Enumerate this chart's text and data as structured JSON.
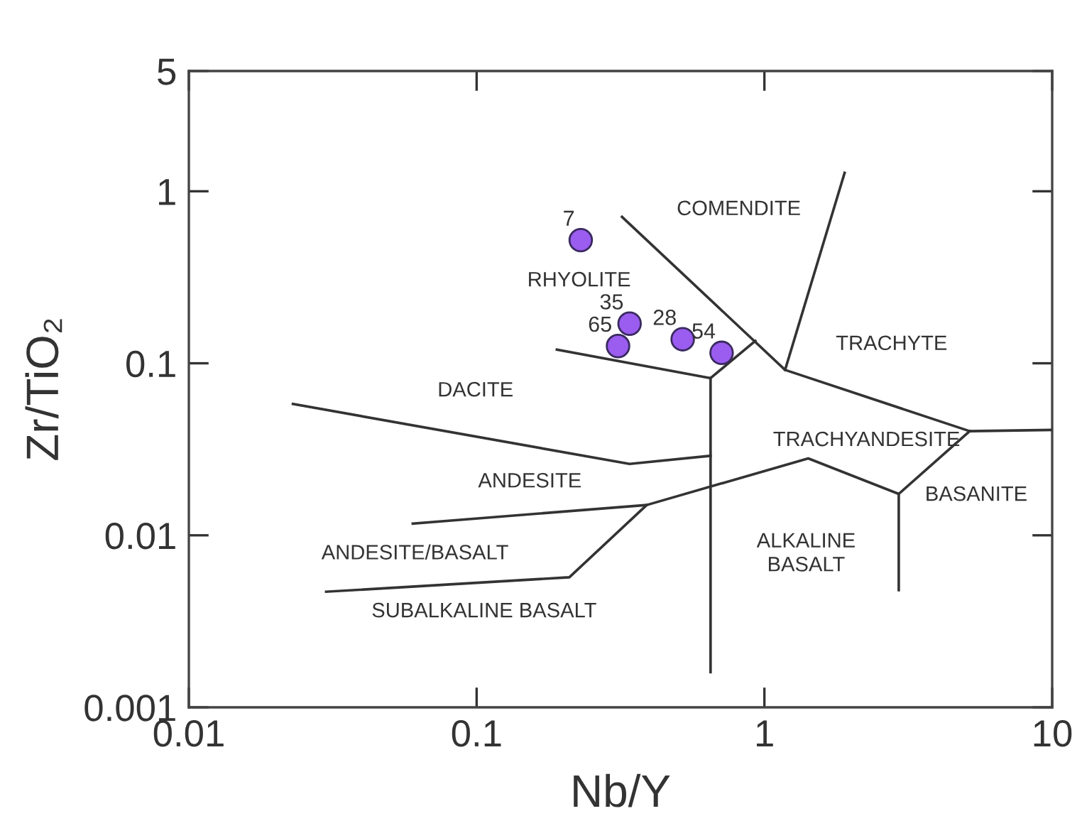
{
  "chart_data": {
    "type": "scatter",
    "xlabel": "Nb/Y",
    "ylabel": "Zr/TiO₂",
    "log": "xy",
    "grid": false,
    "legend": false,
    "xlim": [
      0.01,
      10
    ],
    "xticks": [
      0.01,
      0.1,
      1,
      10
    ],
    "ylim": [
      0.001,
      5
    ],
    "yticks": [
      0.001,
      0.01,
      0.1,
      1,
      5
    ],
    "series": [
      {
        "type": "scatter",
        "color": "#9b5cf0",
        "marker": "circle",
        "x": [
          0.23,
          0.34,
          0.31,
          0.52,
          0.71
        ],
        "values": [
          0.52,
          0.17,
          0.126,
          0.138,
          0.115
        ]
      },
      {
        "type": "line",
        "color": "#333333",
        "marker": "none",
        "x": [
          0.32,
          1.18,
          5.17,
          10
        ],
        "values": [
          0.71,
          0.0915,
          0.0403,
          0.041
        ]
      },
      {
        "type": "line",
        "color": "#333333",
        "marker": "none",
        "x": [
          1.18,
          1.9
        ],
        "values": [
          0.0915,
          1.28
        ]
      },
      {
        "type": "line",
        "color": "#333333",
        "marker": "none",
        "x": [
          0.19,
          0.65,
          0.93
        ],
        "values": [
          0.12,
          0.082,
          0.135
        ]
      },
      {
        "type": "line",
        "color": "#333333",
        "marker": "none",
        "x": [
          0.65,
          0.65
        ],
        "values": [
          0.082,
          0.0016
        ]
      },
      {
        "type": "line",
        "color": "#333333",
        "marker": "none",
        "x": [
          0.023,
          0.34,
          0.65
        ],
        "values": [
          0.058,
          0.026,
          0.029
        ]
      },
      {
        "type": "line",
        "color": "#333333",
        "marker": "none",
        "x": [
          0.06,
          0.39,
          1.42,
          2.93,
          5.17
        ],
        "values": [
          0.0117,
          0.015,
          0.028,
          0.0174,
          0.0403
        ]
      },
      {
        "type": "line",
        "color": "#333333",
        "marker": "none",
        "x": [
          0.03,
          0.21,
          0.39
        ],
        "values": [
          0.0047,
          0.0057,
          0.015
        ]
      },
      {
        "type": "line",
        "color": "#333333",
        "marker": "none",
        "x": [
          2.93,
          2.93
        ],
        "values": [
          0.0174,
          0.0048
        ]
      }
    ],
    "annotations": [
      "COMENDITE",
      "RHYOLITE",
      "TRACHYTE",
      "DACITE",
      "TRACHYANDESITE",
      "ANDESITE",
      "BASANITE",
      "ANDESITE/BASALT",
      "ALKALINE\nBASALT",
      "SUBALKALINE BASALT",
      {
        "text": "7",
        "x": 0.23,
        "y": 0.52
      },
      {
        "text": "35",
        "x": 0.34,
        "y": 0.17
      },
      {
        "text": "65",
        "x": 0.31,
        "y": 0.126
      },
      {
        "text": "28",
        "x": 0.52,
        "y": 0.138
      },
      {
        "text": "54",
        "x": 0.71,
        "y": 0.115
      }
    ]
  }
}
